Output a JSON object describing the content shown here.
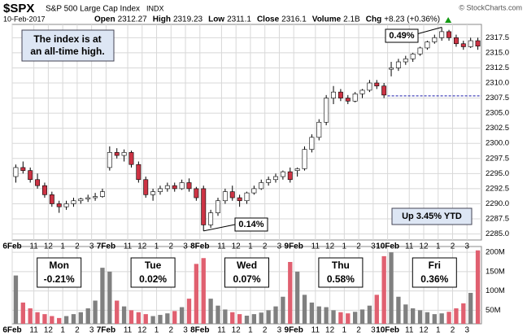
{
  "chart_data": {
    "type": "candlestick",
    "symbol": "$SPX",
    "name": "S&P 500 Large Cap Index",
    "exchange": "INDX",
    "date": "10-Feb-2017",
    "quote": [
      {
        "label": "Open",
        "value": 2312.27
      },
      {
        "label": "High",
        "value": 2319.23
      },
      {
        "label": "Low",
        "value": 2311.1
      },
      {
        "label": "Close",
        "value": 2316.1
      },
      {
        "label": "Volume",
        "value": "2.1B"
      }
    ],
    "change_label": "Chg",
    "change": "+8.23 (+0.36%)",
    "credit": "© StockCharts.com",
    "annotations": {
      "note": [
        "The index is at",
        "an all-time high."
      ],
      "high_pct": "0.49%",
      "low_pct": "0.14%",
      "ytd": "Up 3.45% YTD"
    },
    "days": [
      {
        "ticks": [
          "6Feb",
          "11",
          "12",
          "1",
          "2",
          "3"
        ],
        "weekday": "Mon",
        "change": "-0.21%",
        "color": "#cc0000"
      },
      {
        "ticks": [
          "7Feb",
          "11",
          "12",
          "1",
          "2",
          "3"
        ],
        "weekday": "Tue",
        "change": "0.02%",
        "color": "#cc0000"
      },
      {
        "ticks": [
          "8Feb",
          "11",
          "12",
          "1",
          "2",
          "3"
        ],
        "weekday": "Wed",
        "change": "0.07%",
        "color": "#cc0000"
      },
      {
        "ticks": [
          "9Feb",
          "11",
          "12",
          "1",
          "2",
          "3"
        ],
        "weekday": "Thu",
        "change": "0.58%",
        "color": "#119911"
      },
      {
        "ticks": [
          "10Feb",
          "11",
          "12",
          "1",
          "2",
          "3"
        ],
        "weekday": "Fri",
        "change": "0.36%",
        "color": "#119911"
      }
    ],
    "candles": [
      [
        2294.5,
        2296.5,
        2293.5,
        2296
      ],
      [
        2296,
        2297,
        2295,
        2295.5
      ],
      [
        2295.5,
        2296,
        2293.5,
        2294
      ],
      [
        2294,
        2295,
        2292.5,
        2293
      ],
      [
        2293,
        2293.5,
        2291,
        2291.5
      ],
      [
        2291.5,
        2292,
        2289.5,
        2290
      ],
      [
        2290,
        2290.5,
        2288.5,
        2289.5
      ],
      [
        2289.5,
        2290.5,
        2289,
        2290
      ],
      [
        2290,
        2291,
        2289.5,
        2290.5
      ],
      [
        2290.5,
        2291,
        2290,
        2290.8
      ],
      [
        2290.8,
        2291.5,
        2290.3,
        2291
      ],
      [
        2291,
        2291.8,
        2290.5,
        2291.2
      ],
      [
        2291.2,
        2292.5,
        2291,
        2292
      ],
      [
        2296,
        2299.5,
        2295.5,
        2298.5
      ],
      [
        2298.5,
        2299.2,
        2297.5,
        2298
      ],
      [
        2298,
        2299,
        2297,
        2298.5
      ],
      [
        2298.5,
        2298.8,
        2296,
        2296.5
      ],
      [
        2296.5,
        2297,
        2293.5,
        2294
      ],
      [
        2294,
        2294.5,
        2291,
        2291.5
      ],
      [
        2291.5,
        2292.5,
        2290.5,
        2292
      ],
      [
        2292,
        2293,
        2291.5,
        2292.5
      ],
      [
        2292.5,
        2293.5,
        2292,
        2293
      ],
      [
        2293,
        2293.5,
        2292,
        2292.5
      ],
      [
        2292.5,
        2294,
        2292.3,
        2293.5
      ],
      [
        2293.5,
        2294.2,
        2292,
        2292.5
      ],
      [
        2292.5,
        2292.8,
        2290.5,
        2291
      ],
      [
        2292.5,
        2293,
        2285.5,
        2286.5
      ],
      [
        2286.5,
        2289,
        2286,
        2288.5
      ],
      [
        2288.5,
        2291,
        2288,
        2290.5
      ],
      [
        2290.5,
        2292.5,
        2290,
        2292
      ],
      [
        2292,
        2293,
        2290.5,
        2291
      ],
      [
        2291,
        2291.5,
        2289.5,
        2290.5
      ],
      [
        2290.5,
        2292,
        2290,
        2291.8
      ],
      [
        2291.8,
        2293,
        2291.5,
        2292.5
      ],
      [
        2292.5,
        2294,
        2292.3,
        2293.5
      ],
      [
        2293.5,
        2294.5,
        2293,
        2294
      ],
      [
        2294,
        2295,
        2293.5,
        2294.5
      ],
      [
        2294.5,
        2295.5,
        2294,
        2295.3
      ],
      [
        2295.3,
        2296,
        2293.5,
        2294
      ],
      [
        2295.5,
        2296,
        2294.5,
        2295.8
      ],
      [
        2295.8,
        2299.5,
        2295.5,
        2299
      ],
      [
        2299,
        2301.5,
        2298.5,
        2301
      ],
      [
        2301,
        2304,
        2300.5,
        2303.5
      ],
      [
        2303.5,
        2308,
        2303,
        2307.5
      ],
      [
        2307.5,
        2309.5,
        2306.5,
        2308.5
      ],
      [
        2308.5,
        2309,
        2307,
        2307.5
      ],
      [
        2307.5,
        2308,
        2306.5,
        2307
      ],
      [
        2307,
        2308.5,
        2306.8,
        2308.2
      ],
      [
        2308.2,
        2309,
        2307.5,
        2308.8
      ],
      [
        2308.8,
        2310.5,
        2308.5,
        2310
      ],
      [
        2310,
        2310.5,
        2309,
        2309.5
      ],
      [
        2309.5,
        2310,
        2307.5,
        2308
      ],
      [
        2312.27,
        2313.5,
        2311.1,
        2312.5
      ],
      [
        2312.5,
        2314,
        2312,
        2313.5
      ],
      [
        2313.5,
        2314.5,
        2313,
        2314
      ],
      [
        2314,
        2315,
        2313.5,
        2314.8
      ],
      [
        2314.8,
        2316,
        2314.5,
        2315.8
      ],
      [
        2315.8,
        2317,
        2315.5,
        2316.8
      ],
      [
        2316.8,
        2318,
        2316.5,
        2317.5
      ],
      [
        2317.5,
        2319.23,
        2317,
        2318.5
      ],
      [
        2318.5,
        2318.8,
        2317,
        2317.5
      ],
      [
        2317.5,
        2318,
        2316,
        2316.5
      ],
      [
        2316.5,
        2317,
        2315.5,
        2316
      ],
      [
        2316,
        2317.5,
        2315.8,
        2317
      ],
      [
        2317,
        2317.5,
        2315.5,
        2316.1
      ]
    ],
    "volume": [
      140,
      70,
      55,
      45,
      40,
      35,
      30,
      35,
      40,
      45,
      55,
      75,
      160,
      150,
      75,
      60,
      50,
      45,
      40,
      35,
      38,
      42,
      48,
      58,
      80,
      170,
      185,
      80,
      62,
      52,
      45,
      40,
      36,
      40,
      44,
      50,
      60,
      85,
      175,
      150,
      90,
      70,
      60,
      58,
      50,
      45,
      42,
      46,
      52,
      62,
      90,
      190,
      200,
      85,
      65,
      55,
      50,
      45,
      40,
      42,
      46,
      55,
      68,
      95,
      205
    ],
    "prev_close": 2307.87,
    "up_color": "#ffffff",
    "down_color": "#cc3344",
    "volume_up_color": "#808080",
    "volume_down_color": "#e06070",
    "ylim": [
      2284.0,
      2319.7
    ],
    "yticks": [
      {
        "value": 2285,
        "label": "2285.0"
      },
      {
        "value": 2287.5,
        "label": "2287.5"
      },
      {
        "value": 2290,
        "label": "2290.0"
      },
      {
        "value": 2292.5,
        "label": "2292.5"
      },
      {
        "value": 2295,
        "label": "2295.0"
      },
      {
        "value": 2297.5,
        "label": "2297.5"
      },
      {
        "value": 2300,
        "label": "2300.0"
      },
      {
        "value": 2302.5,
        "label": "2302.5"
      },
      {
        "value": 2305,
        "label": "2305.0"
      },
      {
        "value": 2307.5,
        "label": "2307.5"
      },
      {
        "value": 2310,
        "label": "2310.0"
      },
      {
        "value": 2312.5,
        "label": "2312.5"
      },
      {
        "value": 2315,
        "label": "2315.0"
      },
      {
        "value": 2317.5,
        "label": "2317.5"
      }
    ],
    "vlim": [
      15,
      215
    ],
    "vticks": [
      {
        "value": 50,
        "label": "50M"
      },
      {
        "value": 100,
        "label": "100M"
      },
      {
        "value": 150,
        "label": "150M"
      },
      {
        "value": 200,
        "label": "200M"
      }
    ],
    "grid": true
  }
}
